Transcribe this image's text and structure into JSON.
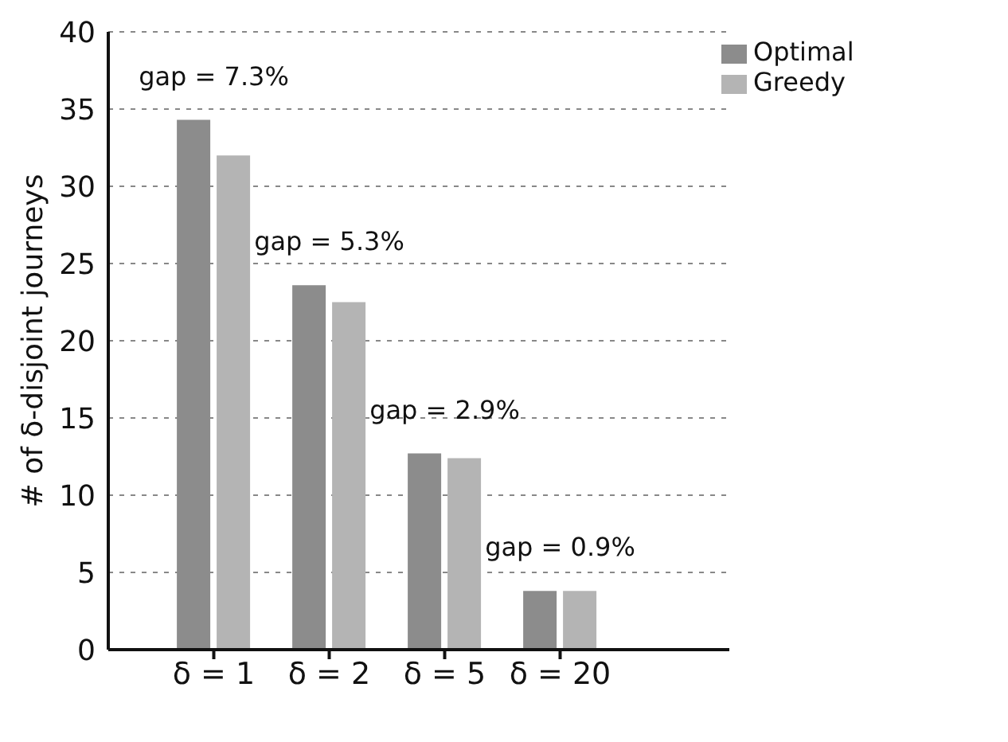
{
  "chart_data": {
    "type": "bar",
    "ylabel": "# of δ-disjoint journeys",
    "categories": [
      "δ = 1",
      "δ = 2",
      "δ = 5",
      "δ = 20"
    ],
    "series": [
      {
        "name": "Optimal",
        "color": "#8c8c8c",
        "values": [
          34.3,
          23.6,
          12.7,
          3.8
        ]
      },
      {
        "name": "Greedy",
        "color": "#b4b4b4",
        "values": [
          32.0,
          22.5,
          12.4,
          3.8
        ]
      }
    ],
    "annotations": [
      "gap = 7.3%",
      "gap = 5.3%",
      "gap = 2.9%",
      "gap = 0.9%"
    ],
    "ylim": [
      0,
      40
    ],
    "yticks": [
      0,
      5,
      10,
      15,
      20,
      25,
      30,
      35,
      40
    ],
    "grid": "y",
    "legend": "top right"
  }
}
